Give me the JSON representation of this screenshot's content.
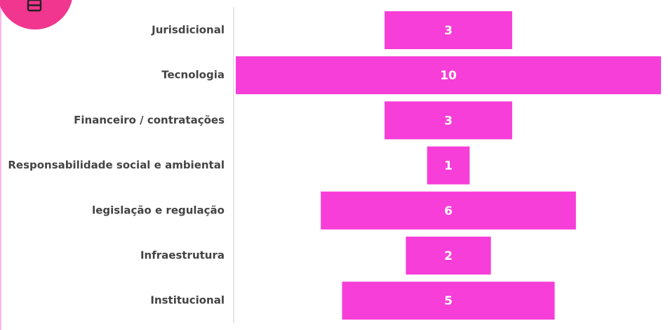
{
  "chart_data": {
    "type": "funnel",
    "categories": [
      "Jurisdicional",
      "Tecnologia",
      "Financeiro / contratações",
      "Responsabilidade social e ambiental",
      "legislação e regulação",
      "Infraestrutura",
      "Institucional"
    ],
    "values": [
      3,
      10,
      3,
      1,
      6,
      2,
      5
    ],
    "color": "#f73ed8"
  }
}
